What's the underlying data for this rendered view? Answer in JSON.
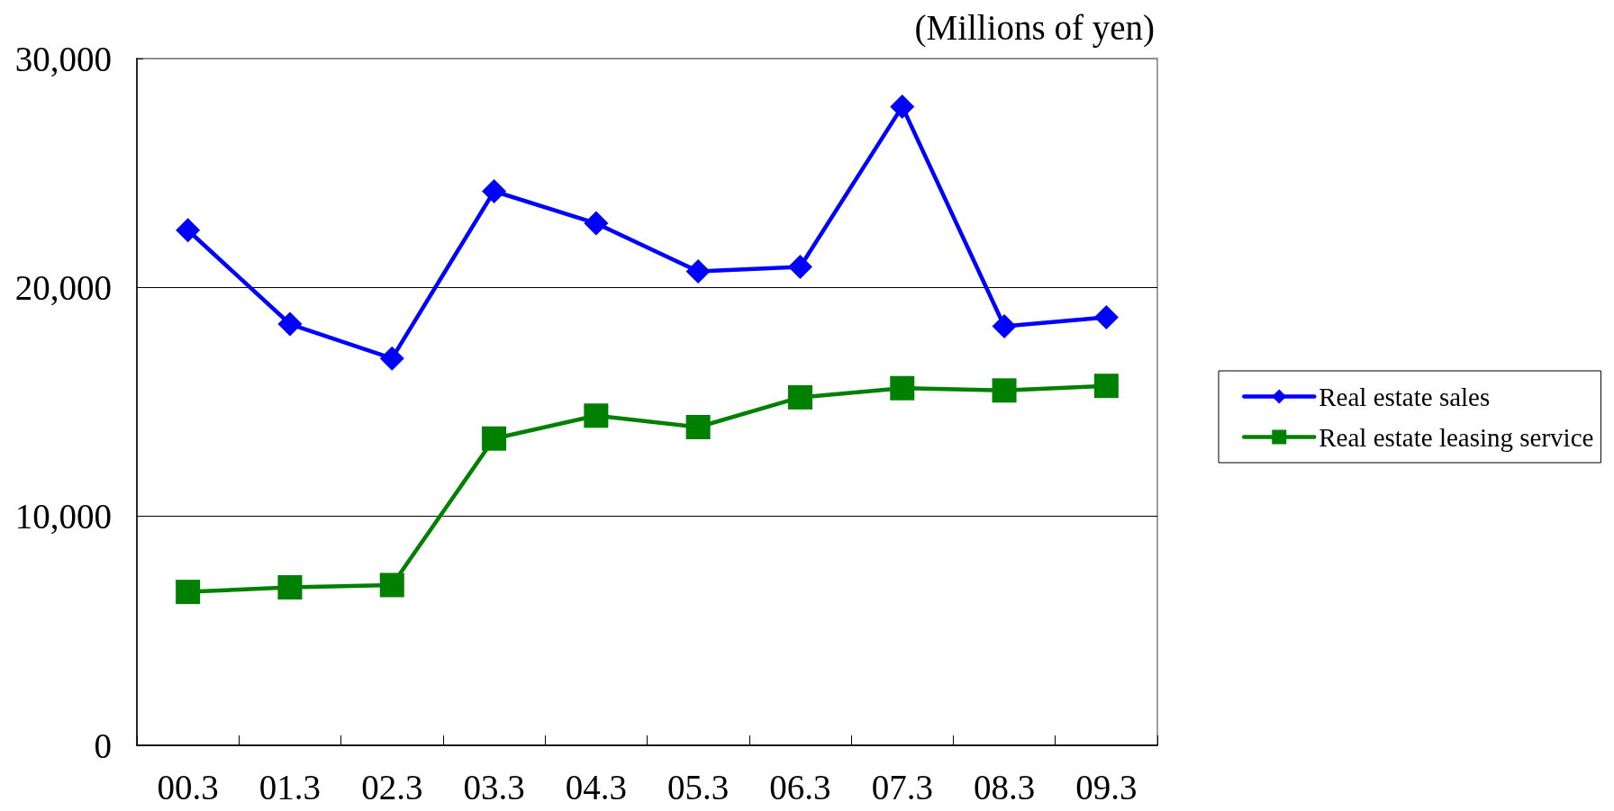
{
  "chart_data": {
    "type": "line",
    "ylabel": "(Millions of yen)",
    "categories": [
      "00.3",
      "01.3",
      "02.3",
      "03.3",
      "04.3",
      "05.3",
      "06.3",
      "07.3",
      "08.3",
      "09.3"
    ],
    "series": [
      {
        "name": "Real estate sales",
        "color": "#0000ff",
        "marker": "diamond",
        "values": [
          22500,
          18400,
          16900,
          24200,
          22800,
          20700,
          20900,
          27900,
          18300,
          18700
        ]
      },
      {
        "name": "Real estate leasing service",
        "color": "#008000",
        "marker": "square",
        "values": [
          6700,
          6900,
          7000,
          13400,
          14400,
          13900,
          15200,
          15600,
          15500,
          15700
        ]
      }
    ],
    "ylim": [
      0,
      30000
    ],
    "yticks": [
      0,
      {
        "value": 10000,
        "label": "10,000"
      },
      {
        "value": 20000,
        "label": "20,000"
      },
      {
        "value": 30000,
        "label": "30,000"
      }
    ],
    "grid": "y",
    "legend": "right"
  }
}
